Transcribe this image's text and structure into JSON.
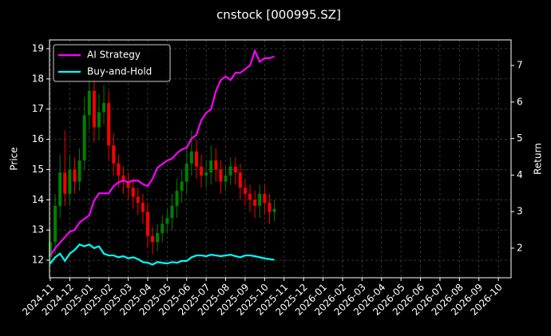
{
  "chart_data": {
    "type": "candlestick",
    "title": "cnstock [000995.SZ]",
    "ylabel": "Price",
    "y2label": "Return",
    "x": [
      0,
      0.25,
      0.5,
      0.75,
      1,
      1.25,
      1.5,
      1.75,
      2,
      2.25,
      2.5,
      2.75,
      3,
      3.25,
      3.5,
      3.75,
      4,
      4.25,
      4.5,
      4.75,
      5,
      5.25,
      5.5,
      5.75,
      6,
      6.25,
      6.5,
      6.75,
      7,
      7.25,
      7.5,
      7.75,
      8,
      8.25,
      8.5,
      8.75,
      9,
      9.25,
      9.5,
      9.75,
      10,
      10.25,
      10.5,
      10.75,
      11,
      11.25,
      11.5
    ],
    "open": [
      12.1,
      12.6,
      13.8,
      14.9,
      14.2,
      15.0,
      14.6,
      15.3,
      16.8,
      17.6,
      16.4,
      16.9,
      17.2,
      15.8,
      15.2,
      14.8,
      14.6,
      14.4,
      14.1,
      13.9,
      13.6,
      12.8,
      12.6,
      12.9,
      13.2,
      13.4,
      13.8,
      14.3,
      14.6,
      15.2,
      15.6,
      15.1,
      14.8,
      14.9,
      15.3,
      15.0,
      14.6,
      14.8,
      15.1,
      14.9,
      14.4,
      14.2,
      14.0,
      13.8,
      14.2,
      13.9,
      13.6
    ],
    "high": [
      13.0,
      14.2,
      15.5,
      16.3,
      15.5,
      15.4,
      15.7,
      17.4,
      18.4,
      18.0,
      17.5,
      17.8,
      17.6,
      16.2,
      15.5,
      15.1,
      14.9,
      14.7,
      14.4,
      14.2,
      13.9,
      13.1,
      13.2,
      13.5,
      13.7,
      14.2,
      14.7,
      15.0,
      15.7,
      16.3,
      16.0,
      15.5,
      15.3,
      15.8,
      15.7,
      15.3,
      15.1,
      15.4,
      15.4,
      15.2,
      14.7,
      14.5,
      14.3,
      14.5,
      14.5,
      14.2,
      14.0
    ],
    "low": [
      11.8,
      12.2,
      13.4,
      13.8,
      13.8,
      14.2,
      14.3,
      15.0,
      16.3,
      15.9,
      16.0,
      16.5,
      15.3,
      14.8,
      14.4,
      14.2,
      14.0,
      13.7,
      13.5,
      13.2,
      12.4,
      12.2,
      12.3,
      12.6,
      12.9,
      13.0,
      13.4,
      13.9,
      14.2,
      14.8,
      14.7,
      14.4,
      14.4,
      14.5,
      14.6,
      14.2,
      14.3,
      14.5,
      14.5,
      14.0,
      13.8,
      13.6,
      13.4,
      13.4,
      13.5,
      13.2,
      13.3
    ],
    "close": [
      12.6,
      13.8,
      14.9,
      14.2,
      15.0,
      14.6,
      15.3,
      16.8,
      17.6,
      16.4,
      16.9,
      17.2,
      15.8,
      15.2,
      14.8,
      14.6,
      14.4,
      14.1,
      13.9,
      13.6,
      12.8,
      12.6,
      12.9,
      13.2,
      13.4,
      13.8,
      14.3,
      14.6,
      15.2,
      15.6,
      15.1,
      14.8,
      14.9,
      15.3,
      15.0,
      14.6,
      14.8,
      15.1,
      14.9,
      14.4,
      14.2,
      14.0,
      13.8,
      14.2,
      13.9,
      13.6,
      13.7
    ],
    "up_color": "#008000",
    "down_color": "#ff0000",
    "series": [
      {
        "name": "AI Strategy",
        "color": "#ff00ff",
        "axis": "y2",
        "values": [
          1.8,
          2.0,
          2.15,
          2.3,
          2.45,
          2.5,
          2.7,
          2.8,
          2.9,
          3.3,
          3.5,
          3.5,
          3.5,
          3.7,
          3.8,
          3.85,
          3.8,
          3.85,
          3.85,
          3.75,
          3.7,
          3.9,
          4.2,
          4.3,
          4.4,
          4.45,
          4.6,
          4.7,
          4.75,
          5.0,
          5.1,
          5.5,
          5.7,
          5.8,
          6.3,
          6.6,
          6.7,
          6.6,
          6.8,
          6.8,
          6.9,
          7.0,
          7.4,
          7.1,
          7.2,
          7.2,
          7.25
        ]
      },
      {
        "name": "Buy-and-Hold",
        "color": "#00ffff",
        "axis": "y2",
        "values": [
          1.58,
          1.75,
          1.85,
          1.65,
          1.85,
          1.95,
          2.1,
          2.05,
          2.1,
          2.0,
          2.05,
          1.85,
          1.8,
          1.8,
          1.75,
          1.78,
          1.72,
          1.75,
          1.7,
          1.62,
          1.6,
          1.55,
          1.62,
          1.6,
          1.58,
          1.62,
          1.6,
          1.65,
          1.65,
          1.75,
          1.8,
          1.8,
          1.78,
          1.82,
          1.8,
          1.78,
          1.8,
          1.82,
          1.78,
          1.75,
          1.8,
          1.8,
          1.78,
          1.75,
          1.72,
          1.7,
          1.68
        ]
      }
    ],
    "xlim": [
      -0.04,
      23.65
    ],
    "xticks": [
      {
        "value": 0,
        "label": "2024-11"
      },
      {
        "value": 1,
        "label": "2024-12"
      },
      {
        "value": 2,
        "label": "2025-01"
      },
      {
        "value": 3,
        "label": "2025-02"
      },
      {
        "value": 4,
        "label": "2025-03"
      },
      {
        "value": 5,
        "label": "2025-04"
      },
      {
        "value": 6,
        "label": "2025-05"
      },
      {
        "value": 7,
        "label": "2025-06"
      },
      {
        "value": 8,
        "label": "2025-07"
      },
      {
        "value": 9,
        "label": "2025-08"
      },
      {
        "value": 10,
        "label": "2025-09"
      },
      {
        "value": 11,
        "label": "2025-10"
      },
      {
        "value": 12,
        "label": "2025-11"
      },
      {
        "value": 13,
        "label": "2025-12"
      },
      {
        "value": 14,
        "label": "2026-01"
      },
      {
        "value": 15,
        "label": "2026-02"
      },
      {
        "value": 16,
        "label": "2026-03"
      },
      {
        "value": 17,
        "label": "2026-04"
      },
      {
        "value": 18,
        "label": "2026-05"
      },
      {
        "value": 19,
        "label": "2026-06"
      },
      {
        "value": 20,
        "label": "2026-07"
      },
      {
        "value": 21,
        "label": "2026-08"
      },
      {
        "value": 22,
        "label": "2026-09"
      },
      {
        "value": 23,
        "label": "2026-10"
      }
    ],
    "ylim": [
      11.42,
      19.29
    ],
    "yticks": [
      12,
      13,
      14,
      15,
      16,
      17,
      18,
      19
    ],
    "y2lim": [
      1.19,
      7.7
    ],
    "y2ticks": [
      2,
      3,
      4,
      5,
      6,
      7
    ],
    "grid": true,
    "legend": "upper left"
  }
}
